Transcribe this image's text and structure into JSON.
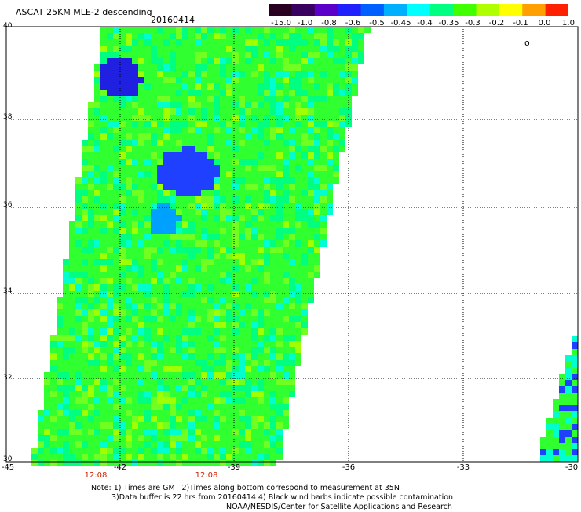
{
  "title": "ASCAT 25KM MLE-2 descending",
  "date": "20160414",
  "colorbar": {
    "labels": [
      "-15.0",
      "-1.0",
      "-0.8",
      "-0.6",
      "-0.5",
      "-0.45",
      "-0.4",
      "-0.35",
      "-0.3",
      "-0.2",
      "-0.1",
      "0.0",
      "1.0"
    ],
    "colors": [
      "#2a0020",
      "#3a0060",
      "#5a00c8",
      "#2020ff",
      "#0060ff",
      "#00b0ff",
      "#00ffff",
      "#00ff80",
      "#40ff00",
      "#b0ff00",
      "#ffff00",
      "#ffa000",
      "#ff2000"
    ]
  },
  "map": {
    "lat_labels": [
      "40",
      "38",
      "36",
      "34",
      "32",
      "30"
    ],
    "lon_labels": [
      "-45",
      "-42",
      "-39",
      "-36",
      "-33",
      "-30"
    ],
    "time_labels": [
      "12:08",
      "12:08"
    ],
    "marker_text": "o"
  },
  "notes": [
    "Note: 1) Times are GMT 2)Times along bottom correspond to measurement at 35N",
    "3)Data buffer is 22 hrs from 20160414 4) Black wind barbs indicate possible contamination",
    "NOAA/NESDIS/Center for Satellite Applications and Research"
  ]
}
